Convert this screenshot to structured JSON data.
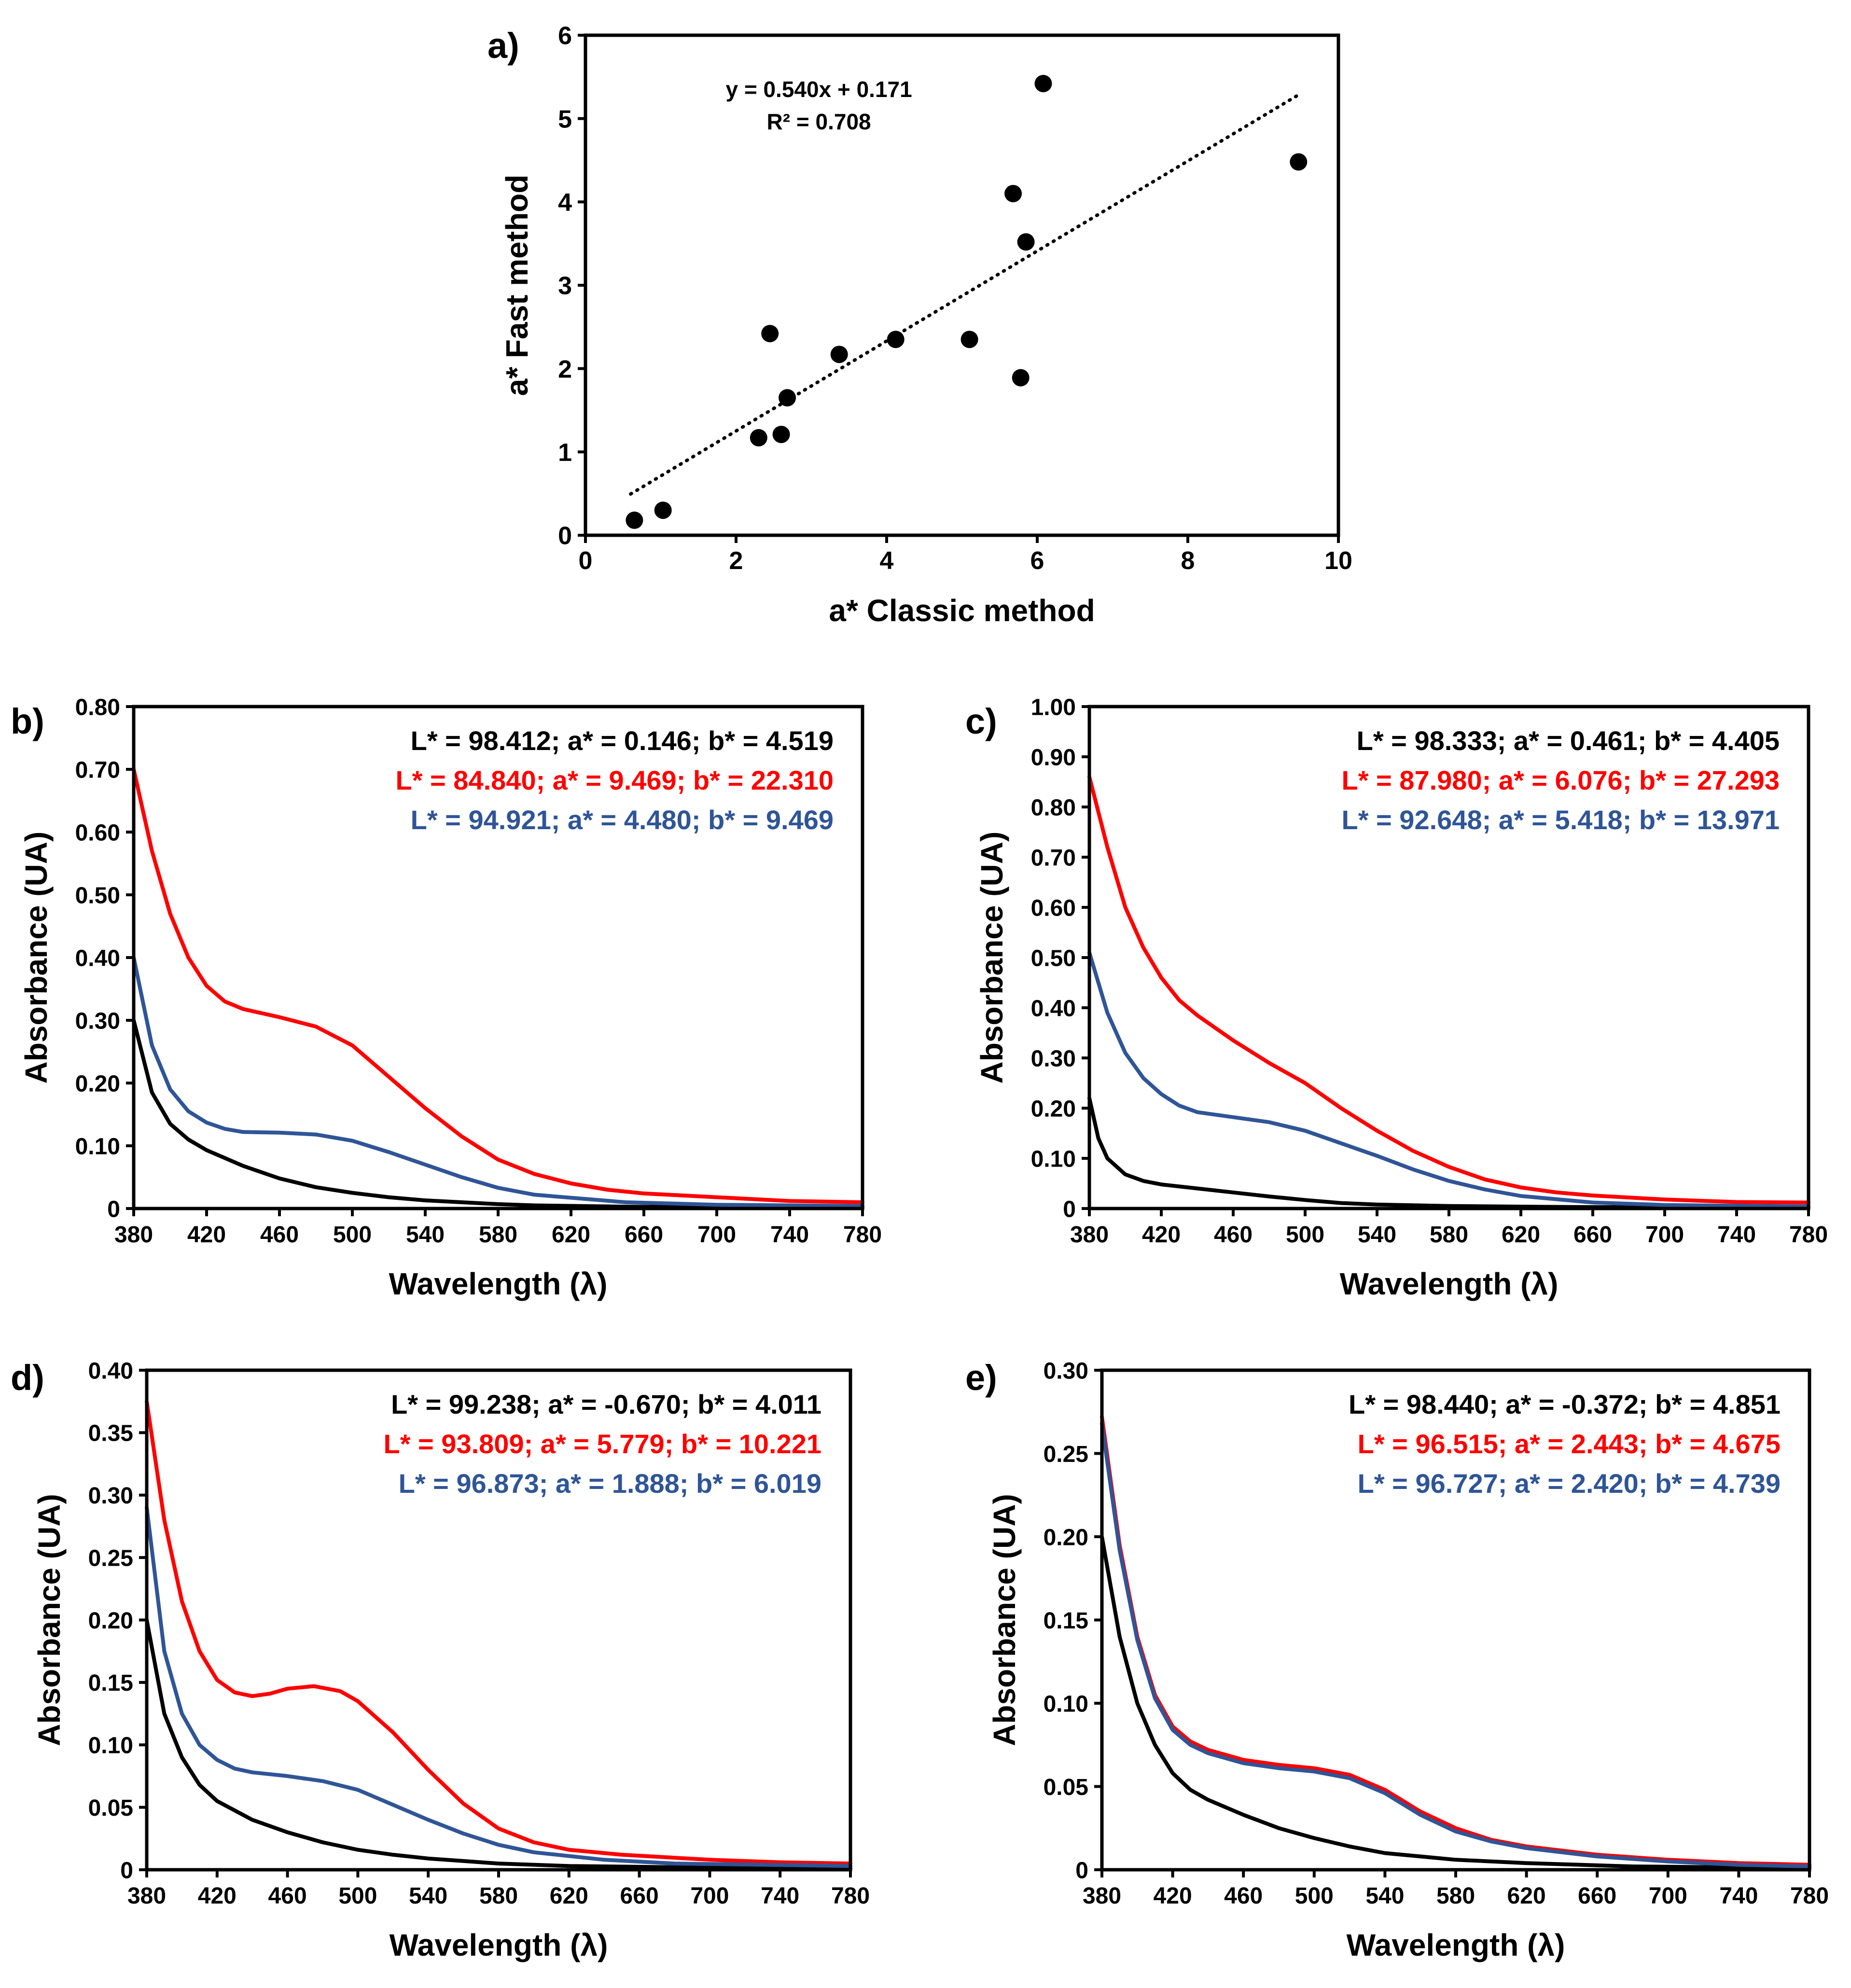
{
  "colors": {
    "black": "#000000",
    "red": "#ff0000",
    "blue": "#2f5597"
  },
  "chart_data": [
    {
      "id": "a",
      "panel_label": "a)",
      "type": "scatter",
      "xlabel": "a* Classic method",
      "ylabel": "a* Fast method",
      "xlim": [
        0,
        10
      ],
      "ylim": [
        0,
        6
      ],
      "xticks": [
        0,
        2,
        4,
        6,
        8,
        10
      ],
      "yticks": [
        0,
        1,
        2,
        3,
        4,
        5,
        6
      ],
      "tick_labels_x": [
        "0",
        "2",
        "4",
        "6",
        "8",
        "10"
      ],
      "tick_labels_y": [
        "0",
        "1",
        "2",
        "3",
        "4",
        "5",
        "6"
      ],
      "equation": "y = 0.540x + 0.171",
      "r2": "R² = 0.708",
      "trendline": {
        "slope": 0.54,
        "intercept": 0.171,
        "x_range": [
          0.6,
          9.47
        ]
      },
      "points": [
        {
          "x": 0.65,
          "y": 0.18
        },
        {
          "x": 1.03,
          "y": 0.3
        },
        {
          "x": 2.3,
          "y": 1.17
        },
        {
          "x": 2.6,
          "y": 1.21
        },
        {
          "x": 2.68,
          "y": 1.65
        },
        {
          "x": 2.45,
          "y": 2.42
        },
        {
          "x": 3.37,
          "y": 2.17
        },
        {
          "x": 4.12,
          "y": 2.35
        },
        {
          "x": 5.1,
          "y": 2.35
        },
        {
          "x": 5.78,
          "y": 1.89
        },
        {
          "x": 5.68,
          "y": 4.1
        },
        {
          "x": 5.85,
          "y": 3.52
        },
        {
          "x": 6.08,
          "y": 5.42
        },
        {
          "x": 9.47,
          "y": 4.48
        }
      ]
    },
    {
      "id": "b",
      "panel_label": "b)",
      "type": "line",
      "xlabel": "Wavelength (λ)",
      "ylabel": "Absorbance (UA)",
      "xlim": [
        380,
        780
      ],
      "ylim": [
        0,
        0.8
      ],
      "xticks": [
        380,
        420,
        460,
        500,
        540,
        580,
        620,
        660,
        700,
        740,
        780
      ],
      "yticks": [
        0,
        0.1,
        0.2,
        0.3,
        0.4,
        0.5,
        0.6,
        0.7,
        0.8
      ],
      "tick_labels_x": [
        "380",
        "420",
        "460",
        "500",
        "540",
        "580",
        "620",
        "660",
        "700",
        "740",
        "780"
      ],
      "tick_labels_y": [
        "0",
        "0.10",
        "0.20",
        "0.30",
        "0.40",
        "0.50",
        "0.60",
        "0.70",
        "0.80"
      ],
      "legend": [
        {
          "text": "L* = 98.412; a* = 0.146; b* = 4.519",
          "color": "#000000"
        },
        {
          "text": "L* = 84.840; a* = 9.469; b* = 22.310",
          "color": "#ff0000"
        },
        {
          "text": "L* = 94.921; a* = 4.480; b* = 9.469",
          "color": "#2f5597"
        }
      ],
      "series": [
        {
          "name": "black",
          "color": "#000000",
          "x": [
            380,
            390,
            400,
            410,
            420,
            440,
            460,
            480,
            500,
            520,
            540,
            560,
            580,
            600,
            650,
            700,
            780
          ],
          "y": [
            0.3,
            0.185,
            0.135,
            0.11,
            0.093,
            0.068,
            0.048,
            0.034,
            0.025,
            0.018,
            0.013,
            0.01,
            0.007,
            0.005,
            0.003,
            0.002,
            0.001
          ]
        },
        {
          "name": "red",
          "color": "#ff0000",
          "x": [
            380,
            390,
            400,
            410,
            420,
            430,
            440,
            460,
            480,
            500,
            510,
            520,
            540,
            560,
            580,
            600,
            620,
            640,
            660,
            700,
            740,
            780
          ],
          "y": [
            0.7,
            0.57,
            0.47,
            0.4,
            0.355,
            0.33,
            0.318,
            0.305,
            0.29,
            0.26,
            0.235,
            0.21,
            0.16,
            0.115,
            0.078,
            0.055,
            0.04,
            0.03,
            0.024,
            0.018,
            0.012,
            0.01
          ]
        },
        {
          "name": "blue",
          "color": "#2f5597",
          "x": [
            380,
            390,
            400,
            410,
            420,
            430,
            440,
            460,
            480,
            500,
            520,
            540,
            560,
            580,
            600,
            650,
            700,
            780
          ],
          "y": [
            0.4,
            0.26,
            0.19,
            0.155,
            0.137,
            0.127,
            0.122,
            0.121,
            0.118,
            0.108,
            0.09,
            0.07,
            0.05,
            0.033,
            0.022,
            0.01,
            0.006,
            0.004
          ]
        }
      ]
    },
    {
      "id": "c",
      "panel_label": "c)",
      "type": "line",
      "xlabel": "Wavelength (λ)",
      "ylabel": "Absorbance (UA)",
      "xlim": [
        380,
        780
      ],
      "ylim": [
        0,
        1.0
      ],
      "xticks": [
        380,
        420,
        460,
        500,
        540,
        580,
        620,
        660,
        700,
        740,
        780
      ],
      "yticks": [
        0,
        0.1,
        0.2,
        0.3,
        0.4,
        0.5,
        0.6,
        0.7,
        0.8,
        0.9,
        1.0
      ],
      "tick_labels_x": [
        "380",
        "420",
        "460",
        "500",
        "540",
        "580",
        "620",
        "660",
        "700",
        "740",
        "780"
      ],
      "tick_labels_y": [
        "0",
        "0.10",
        "0.20",
        "0.30",
        "0.40",
        "0.50",
        "0.60",
        "0.70",
        "0.80",
        "0.90",
        "1.00"
      ],
      "legend": [
        {
          "text": "L* = 98.333; a* = 0.461; b* = 4.405",
          "color": "#000000"
        },
        {
          "text": "L* = 87.980; a* = 6.076; b* = 27.293",
          "color": "#ff0000"
        },
        {
          "text": "L* = 92.648; a* = 5.418; b* = 13.971",
          "color": "#2f5597"
        }
      ],
      "series": [
        {
          "name": "black",
          "color": "#000000",
          "x": [
            380,
            385,
            390,
            400,
            410,
            420,
            440,
            460,
            480,
            500,
            520,
            540,
            580,
            650,
            780
          ],
          "y": [
            0.22,
            0.14,
            0.1,
            0.068,
            0.055,
            0.048,
            0.04,
            0.032,
            0.024,
            0.017,
            0.011,
            0.008,
            0.005,
            0.003,
            0.002
          ]
        },
        {
          "name": "red",
          "color": "#ff0000",
          "x": [
            380,
            390,
            400,
            410,
            420,
            430,
            440,
            460,
            480,
            500,
            520,
            540,
            560,
            580,
            600,
            620,
            640,
            660,
            700,
            740,
            780
          ],
          "y": [
            0.86,
            0.72,
            0.6,
            0.52,
            0.46,
            0.415,
            0.385,
            0.335,
            0.29,
            0.25,
            0.2,
            0.155,
            0.115,
            0.083,
            0.058,
            0.042,
            0.032,
            0.026,
            0.018,
            0.013,
            0.012
          ]
        },
        {
          "name": "blue",
          "color": "#2f5597",
          "x": [
            380,
            390,
            400,
            410,
            420,
            430,
            440,
            460,
            480,
            500,
            520,
            540,
            560,
            580,
            600,
            620,
            660,
            700,
            780
          ],
          "y": [
            0.51,
            0.39,
            0.31,
            0.26,
            0.228,
            0.205,
            0.192,
            0.182,
            0.172,
            0.155,
            0.13,
            0.105,
            0.078,
            0.055,
            0.038,
            0.025,
            0.012,
            0.007,
            0.004
          ]
        }
      ]
    },
    {
      "id": "d",
      "panel_label": "d)",
      "type": "line",
      "xlabel": "Wavelength (λ)",
      "ylabel": "Absorbance (UA)",
      "xlim": [
        380,
        780
      ],
      "ylim": [
        0,
        0.4
      ],
      "xticks": [
        380,
        420,
        460,
        500,
        540,
        580,
        620,
        660,
        700,
        740,
        780
      ],
      "yticks": [
        0,
        0.05,
        0.1,
        0.15,
        0.2,
        0.25,
        0.3,
        0.35,
        0.4
      ],
      "tick_labels_x": [
        "380",
        "420",
        "460",
        "500",
        "540",
        "580",
        "620",
        "660",
        "700",
        "740",
        "780"
      ],
      "tick_labels_y": [
        "0",
        "0.05",
        "0.10",
        "0.15",
        "0.20",
        "0.25",
        "0.30",
        "0.35",
        "0.40"
      ],
      "legend": [
        {
          "text": "L* = 99.238; a* = -0.670; b* = 4.011",
          "color": "#000000"
        },
        {
          "text": "L* = 93.809; a* = 5.779; b* = 10.221",
          "color": "#ff0000"
        },
        {
          "text": "L* = 96.873; a* = 1.888; b* = 6.019",
          "color": "#2f5597"
        }
      ],
      "series": [
        {
          "name": "black",
          "color": "#000000",
          "x": [
            380,
            390,
            400,
            410,
            420,
            440,
            460,
            480,
            500,
            520,
            540,
            560,
            580,
            620,
            680,
            780
          ],
          "y": [
            0.2,
            0.125,
            0.09,
            0.068,
            0.055,
            0.04,
            0.03,
            0.022,
            0.016,
            0.012,
            0.009,
            0.007,
            0.005,
            0.003,
            0.002,
            0.001
          ]
        },
        {
          "name": "red",
          "color": "#ff0000",
          "x": [
            380,
            390,
            400,
            410,
            420,
            430,
            440,
            450,
            460,
            475,
            490,
            500,
            520,
            540,
            560,
            580,
            600,
            620,
            650,
            700,
            740,
            780
          ],
          "y": [
            0.375,
            0.28,
            0.215,
            0.175,
            0.152,
            0.142,
            0.139,
            0.141,
            0.145,
            0.147,
            0.143,
            0.135,
            0.11,
            0.08,
            0.053,
            0.033,
            0.022,
            0.016,
            0.012,
            0.008,
            0.006,
            0.005
          ]
        },
        {
          "name": "blue",
          "color": "#2f5597",
          "x": [
            380,
            390,
            400,
            410,
            420,
            430,
            440,
            460,
            480,
            500,
            520,
            540,
            560,
            580,
            600,
            640,
            680,
            780
          ],
          "y": [
            0.29,
            0.175,
            0.125,
            0.1,
            0.088,
            0.081,
            0.078,
            0.075,
            0.071,
            0.064,
            0.052,
            0.04,
            0.029,
            0.02,
            0.014,
            0.008,
            0.005,
            0.003
          ]
        }
      ]
    },
    {
      "id": "e",
      "panel_label": "e)",
      "type": "line",
      "xlabel": "Wavelength (λ)",
      "ylabel": "Absorbance (UA)",
      "xlim": [
        380,
        780
      ],
      "ylim": [
        0,
        0.3
      ],
      "xticks": [
        380,
        420,
        460,
        500,
        540,
        580,
        620,
        660,
        700,
        740,
        780
      ],
      "yticks": [
        0,
        0.05,
        0.1,
        0.15,
        0.2,
        0.25,
        0.3
      ],
      "tick_labels_x": [
        "380",
        "420",
        "460",
        "500",
        "540",
        "580",
        "620",
        "660",
        "700",
        "740",
        "780"
      ],
      "tick_labels_y": [
        "0",
        "0.05",
        "0.10",
        "0.15",
        "0.20",
        "0.25",
        "0.30"
      ],
      "legend": [
        {
          "text": "L* = 98.440; a* = -0.372; b* = 4.851",
          "color": "#000000"
        },
        {
          "text": "L* = 96.515; a* = 2.443; b* = 4.675",
          "color": "#ff0000"
        },
        {
          "text": "L* = 96.727; a* = 2.420; b* = 4.739",
          "color": "#2f5597"
        }
      ],
      "series": [
        {
          "name": "black",
          "color": "#000000",
          "x": [
            380,
            390,
            400,
            410,
            420,
            430,
            440,
            460,
            480,
            500,
            520,
            540,
            560,
            580,
            620,
            680,
            780
          ],
          "y": [
            0.2,
            0.14,
            0.1,
            0.075,
            0.058,
            0.048,
            0.042,
            0.033,
            0.025,
            0.019,
            0.014,
            0.01,
            0.008,
            0.006,
            0.004,
            0.002,
            0.001
          ]
        },
        {
          "name": "red",
          "color": "#ff0000",
          "x": [
            380,
            390,
            400,
            410,
            420,
            430,
            440,
            460,
            480,
            500,
            520,
            540,
            560,
            580,
            600,
            620,
            660,
            700,
            740,
            780
          ],
          "y": [
            0.272,
            0.195,
            0.14,
            0.105,
            0.086,
            0.077,
            0.072,
            0.066,
            0.063,
            0.061,
            0.057,
            0.048,
            0.035,
            0.025,
            0.018,
            0.014,
            0.009,
            0.006,
            0.004,
            0.003
          ]
        },
        {
          "name": "blue",
          "color": "#2f5597",
          "x": [
            380,
            390,
            400,
            410,
            420,
            430,
            440,
            460,
            480,
            500,
            520,
            540,
            560,
            580,
            600,
            620,
            660,
            700,
            740,
            780
          ],
          "y": [
            0.268,
            0.192,
            0.138,
            0.103,
            0.084,
            0.075,
            0.07,
            0.064,
            0.061,
            0.059,
            0.055,
            0.046,
            0.033,
            0.023,
            0.017,
            0.013,
            0.008,
            0.005,
            0.003,
            0.002
          ]
        }
      ]
    }
  ]
}
